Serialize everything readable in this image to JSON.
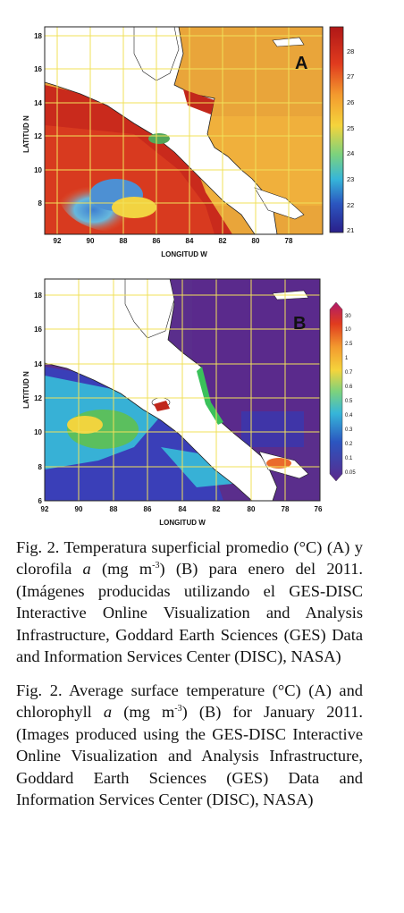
{
  "figure_a": {
    "panel_letter": "A",
    "y_axis_label": "LATITUD N",
    "x_axis_label": "LONGITUD W",
    "lat_ticks": [
      "18",
      "16",
      "14",
      "12",
      "10",
      "8"
    ],
    "lon_ticks": [
      "92",
      "90",
      "88",
      "86",
      "84",
      "82",
      "80",
      "78"
    ],
    "colorbar_ticks": [
      "28",
      "27",
      "26",
      "25",
      "24",
      "23",
      "22",
      "21"
    ],
    "colors": {
      "hot": "#c0271b",
      "warm": "#e8a23a",
      "mid": "#f1d03e",
      "cool": "#9fd0e0",
      "cold": "#2a3a9c",
      "land": "#ffffff",
      "grid": "#f2e45a"
    }
  },
  "figure_b": {
    "panel_letter": "B",
    "y_axis_label": "LATITUD N",
    "x_axis_label": "LONGITUD W",
    "lat_ticks": [
      "18",
      "16",
      "14",
      "12",
      "10",
      "8",
      "6"
    ],
    "lon_ticks": [
      "92",
      "90",
      "88",
      "86",
      "84",
      "82",
      "80",
      "78",
      "76"
    ],
    "colorbar_ticks": [
      "30",
      "10",
      "2.5",
      "1",
      "0.7",
      "0.6",
      "0.5",
      "0.4",
      "0.3",
      "0.2",
      "0.1",
      "0.05"
    ],
    "colors": {
      "ocean_deep": "#5b2d8a",
      "ocean_blue": "#2f3bb5",
      "ocean_cyan": "#35b0d8",
      "green": "#4cae4a",
      "land": "#ffffff",
      "grid": "#f2e45a"
    }
  },
  "caption_es": {
    "part1": "Fig. 2. Temperatura superficial promedio (°C) (A) y clorofila ",
    "italic_a": "a",
    "part2": " (mg m",
    "sup": "-3",
    "part3": ") (B) para enero del 2011. (Imágenes producidas utilizando el GES-DISC Interactive Online Visualization and Analysis Infrastructure, Goddard Earth Sciences (GES) Data and Information Services Center (DISC), NASA)"
  },
  "caption_en": {
    "part1": "Fig. 2. Average surface temperature (°C) (A) and chlorophyll ",
    "italic_a": "a",
    "part2": " (mg m",
    "sup": "-3",
    "part3": ") (B) for January 2011. (Images produced using the GES-DISC Interactive Online Visualization and Analysis Infrastructure, Goddard Earth Sciences (GES) Data and Information Services Center (DISC), NASA)"
  }
}
